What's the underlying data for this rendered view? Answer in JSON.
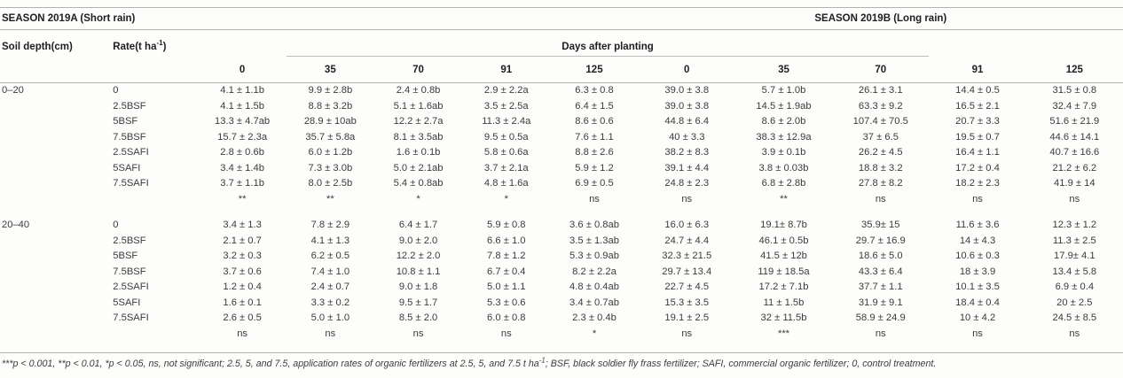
{
  "header": {
    "season_a": "SEASON 2019A (Short rain)",
    "season_b": "SEASON 2019B (Long rain)",
    "soil_depth": "Soil depth(cm)",
    "rate_prefix": "Rate(t ha",
    "rate_sup": "-1",
    "rate_suffix": ")",
    "days_span": "Days after planting",
    "day_columns": [
      "0",
      "35",
      "70",
      "91",
      "125",
      "0",
      "35",
      "70",
      "91",
      "125"
    ]
  },
  "table": {
    "sections": [
      {
        "depth": "0–20",
        "rows": [
          {
            "rate": "0",
            "values": [
              "4.1 ± 1.1b",
              "9.9 ± 2.8b",
              "2.4 ± 0.8b",
              "2.9 ± 2.2a",
              "6.3 ± 0.8",
              "39.0 ± 3.8",
              "5.7 ± 1.0b",
              "26.1 ± 3.1",
              "14.4 ± 0.5",
              "31.5 ± 0.8"
            ]
          },
          {
            "rate": "2.5BSF",
            "values": [
              "4.1 ± 1.5b",
              "8.8 ± 3.2b",
              "5.1 ± 1.6ab",
              "3.5 ± 2.5a",
              "6.4 ± 1.5",
              "39.0 ± 3.8",
              "14.5 ± 1.9ab",
              "63.3 ± 9.2",
              "16.5 ± 2.1",
              "32.4 ± 7.9"
            ]
          },
          {
            "rate": "5BSF",
            "values": [
              "13.3 ± 4.7ab",
              "28.9 ± 10ab",
              "12.2 ± 2.7a",
              "11.3 ± 2.4a",
              "8.6 ± 0.6",
              "44.8 ± 6.4",
              "8.6 ± 2.0b",
              "107.4 ± 70.5",
              "20.7 ± 3.3",
              "51.6 ± 21.9"
            ]
          },
          {
            "rate": "7.5BSF",
            "values": [
              "15.7 ± 2.3a",
              "35.7 ± 5.8a",
              "8.1 ± 3.5ab",
              "9.5 ± 0.5a",
              "7.6 ± 1.1",
              "40 ± 3.3",
              "38.3 ± 12.9a",
              "37 ± 6.5",
              "19.5 ± 0.7",
              "44.6 ± 14.1"
            ]
          },
          {
            "rate": "2.5SAFI",
            "values": [
              "2.8 ± 0.6b",
              "6.0 ± 1.2b",
              "1.6 ± 0.1b",
              "5.8 ± 0.6a",
              "8.8 ± 2.6",
              "38.2 ± 8.3",
              "3.9 ± 0.1b",
              "26.2 ± 4.5",
              "16.4 ± 1.1",
              "40.7 ± 16.6"
            ]
          },
          {
            "rate": "5SAFI",
            "values": [
              "3.4 ± 1.4b",
              "7.3 ± 3.0b",
              "5.0 ± 2.1ab",
              "3.7 ± 2.1a",
              "5.9 ± 1.2",
              "39.1 ± 4.4",
              "3.8 ± 0.03b",
              "18.8 ± 3.2",
              "17.2 ± 0.4",
              "21.2 ± 6.2"
            ]
          },
          {
            "rate": "7.5SAFI",
            "values": [
              "3.7 ± 1.1b",
              "8.0 ± 2.5b",
              "5.4 ± 0.8ab",
              "4.8 ± 1.6a",
              "6.9 ± 0.5",
              "24.8 ± 2.3",
              "6.8 ± 2.8b",
              "27.8 ± 8.2",
              "18.2 ± 2.3",
              "41.9 ± 14"
            ]
          }
        ],
        "significance": [
          "**",
          "**",
          "*",
          "*",
          "ns",
          "ns",
          "**",
          "ns",
          "ns",
          "ns"
        ]
      },
      {
        "depth": "20–40",
        "rows": [
          {
            "rate": "0",
            "values": [
              "3.4 ± 1.3",
              "7.8 ± 2.9",
              "6.4 ± 1.7",
              "5.9 ± 0.8",
              "3.6 ± 0.8ab",
              "16.0 ± 6.3",
              "19.1± 8.7b",
              "35.9± 15",
              "11.6 ± 3.6",
              "12.3 ± 1.2"
            ]
          },
          {
            "rate": "2.5BSF",
            "values": [
              "2.1 ± 0.7",
              "4.1 ± 1.3",
              "9.0 ± 2.0",
              "6.6 ± 1.0",
              "3.5 ± 1.3ab",
              "24.7 ± 4.4",
              "46.1 ± 0.5b",
              "29.7 ± 16.9",
              "14 ± 4.3",
              "11.3 ± 2.5"
            ]
          },
          {
            "rate": "5BSF",
            "values": [
              "3.2 ± 0.3",
              "6.2 ± 0.5",
              "12.2 ± 2.0",
              "7.8 ± 1.2",
              "5.3 ± 0.9ab",
              "32.3 ± 21.5",
              "41.5 ± 12b",
              "18.6 ± 5.0",
              "10.6 ± 0.3",
              "17.9± 4.1"
            ]
          },
          {
            "rate": "7.5BSF",
            "values": [
              "3.7 ± 0.6",
              "7.4 ± 1.0",
              "10.8 ± 1.1",
              "6.7 ± 0.4",
              "8.2 ± 2.2a",
              "29.7 ± 13.4",
              "119 ± 18.5a",
              "43.3 ± 6.4",
              "18 ± 3.9",
              "13.4 ± 5.8"
            ]
          },
          {
            "rate": "2.5SAFI",
            "values": [
              "1.2 ± 0.4",
              "2.4 ± 0.7",
              "9.0 ± 1.8",
              "5.0 ± 1.1",
              "4.8 ± 0.4ab",
              "22.7 ± 4.5",
              "17.2 ± 7.1b",
              "37.7 ± 1.1",
              "10.1 ± 3.5",
              "6.9 ± 0.4"
            ]
          },
          {
            "rate": "5SAFI",
            "values": [
              "1.6 ± 0.1",
              "3.3 ± 0.2",
              "9.5 ± 1.7",
              "5.3 ± 0.6",
              "3.4 ± 0.7ab",
              "15.3 ± 3.5",
              "11 ± 1.5b",
              "31.9 ± 9.1",
              "18.4 ± 0.4",
              "20 ± 2.5"
            ]
          },
          {
            "rate": "7.5SAFI",
            "values": [
              "2.6 ± 0.5",
              "5.0 ± 1.0",
              "8.5 ± 2.0",
              "6.0 ± 0.8",
              "2.3 ± 0.4b",
              "19.1 ± 2.5",
              "32 ± 11.5b",
              "58.9 ± 24.9",
              "10 ± 4.2",
              "24.5 ± 8.5"
            ]
          }
        ],
        "significance": [
          "ns",
          "ns",
          "ns",
          "ns",
          "*",
          "ns",
          "***",
          "ns",
          "ns",
          "ns"
        ]
      }
    ]
  },
  "footnote": {
    "part1": "***p < 0.001, **p < 0.01, *p < 0.05, ns, not significant; 2.5, 5, and 7.5, application rates of organic fertilizers at 2.5, 5, and 7.5 t ha",
    "sup": "-1",
    "part2": "; BSF, black soldier fly frass fertilizer; SAFI, commercial organic fertilizer; 0, control treatment."
  }
}
